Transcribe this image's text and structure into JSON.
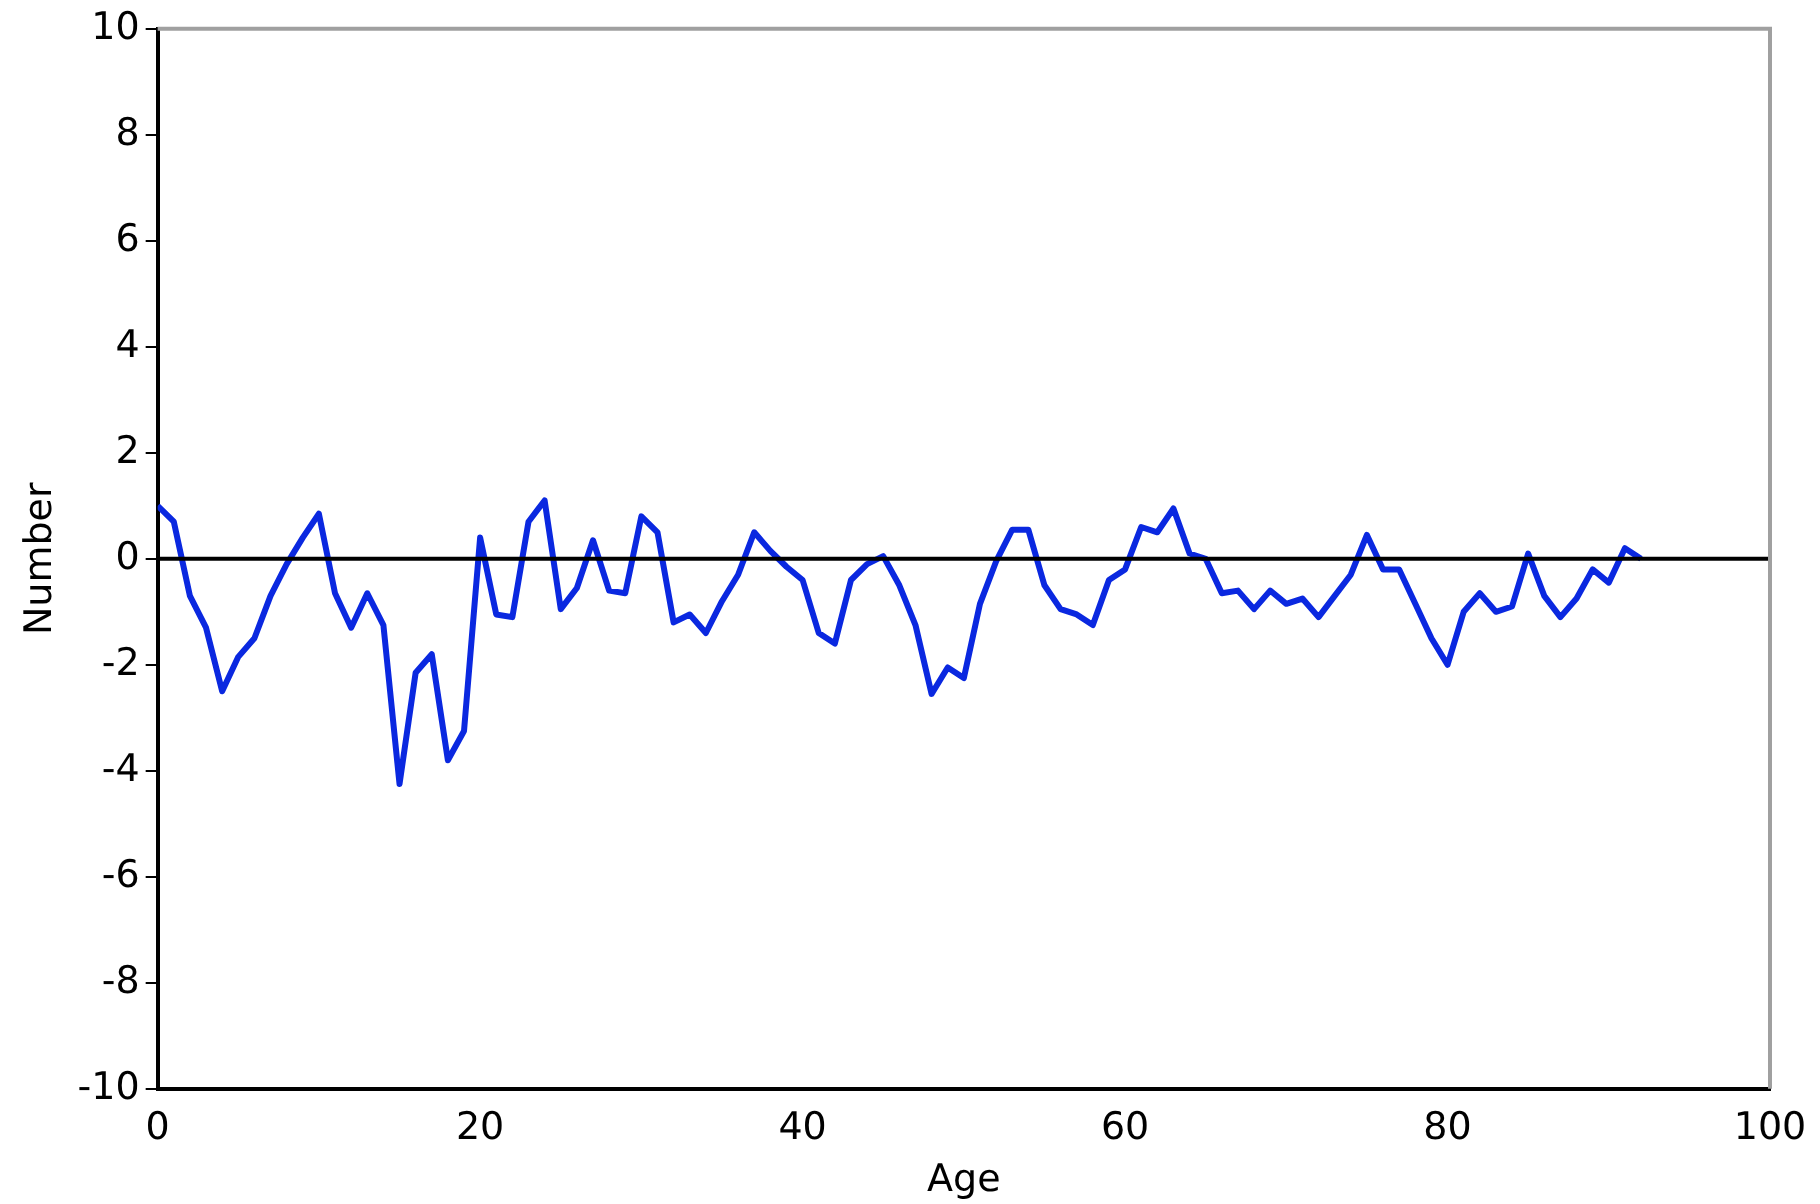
{
  "chart_data": {
    "type": "line",
    "xlabel": "Age",
    "ylabel": "Number",
    "x": [
      0,
      1,
      2,
      3,
      4,
      5,
      6,
      7,
      8,
      9,
      10,
      11,
      12,
      13,
      14,
      15,
      16,
      17,
      18,
      19,
      20,
      21,
      22,
      23,
      24,
      25,
      26,
      27,
      28,
      29,
      30,
      31,
      32,
      33,
      34,
      35,
      36,
      37,
      38,
      39,
      40,
      41,
      42,
      43,
      44,
      45,
      46,
      47,
      48,
      49,
      50,
      51,
      52,
      53,
      54,
      55,
      56,
      57,
      58,
      59,
      60,
      61,
      62,
      63,
      64,
      65,
      66,
      67,
      68,
      69,
      70,
      71,
      72,
      73,
      74,
      75,
      76,
      77,
      78,
      79,
      80,
      81,
      82,
      83,
      84,
      85,
      86,
      87,
      88,
      89,
      90,
      91,
      92
    ],
    "series": [
      {
        "color": "#0a28e0",
        "values": [
          1.0,
          0.7,
          -0.7,
          -1.3,
          -2.5,
          -1.85,
          -1.5,
          -0.7,
          -0.1,
          0.4,
          0.85,
          -0.65,
          -1.3,
          -0.65,
          -1.25,
          -4.25,
          -2.15,
          -1.8,
          -3.8,
          -3.25,
          0.4,
          -1.05,
          -1.1,
          0.7,
          1.1,
          -0.95,
          -0.55,
          0.35,
          -0.6,
          -0.65,
          0.8,
          0.5,
          -1.2,
          -1.05,
          -1.4,
          -0.8,
          -0.3,
          0.5,
          0.15,
          -0.15,
          -0.4,
          -1.4,
          -1.6,
          -0.4,
          -0.1,
          0.05,
          -0.5,
          -1.25,
          -2.55,
          -2.05,
          -2.25,
          -0.85,
          -0.05,
          0.55,
          0.55,
          -0.5,
          -0.95,
          -1.05,
          -1.25,
          -0.4,
          -0.2,
          0.6,
          0.5,
          0.95,
          0.1,
          0.0,
          -0.65,
          -0.6,
          -0.95,
          -0.6,
          -0.85,
          -0.75,
          -1.1,
          -0.7,
          -0.3,
          0.45,
          -0.2,
          -0.2,
          -0.85,
          -1.5,
          -2.0,
          -1.0,
          -0.65,
          -1.0,
          -0.9,
          0.1,
          -0.7,
          -1.1,
          -0.75,
          -0.2,
          -0.45,
          0.2,
          0.0
        ]
      }
    ],
    "xlim": [
      0,
      100
    ],
    "xticks": [
      0,
      20,
      40,
      60,
      80,
      100
    ],
    "ylim": [
      -10,
      10
    ],
    "yticks": [
      -10,
      -8,
      -6,
      -4,
      -2,
      0,
      2,
      4,
      6,
      8,
      10
    ],
    "ref_lines": [
      {
        "axis": "y",
        "value": 0,
        "color": "#000000"
      }
    ],
    "grid": false,
    "legend": false,
    "marker": "none",
    "line_style": "solid"
  }
}
